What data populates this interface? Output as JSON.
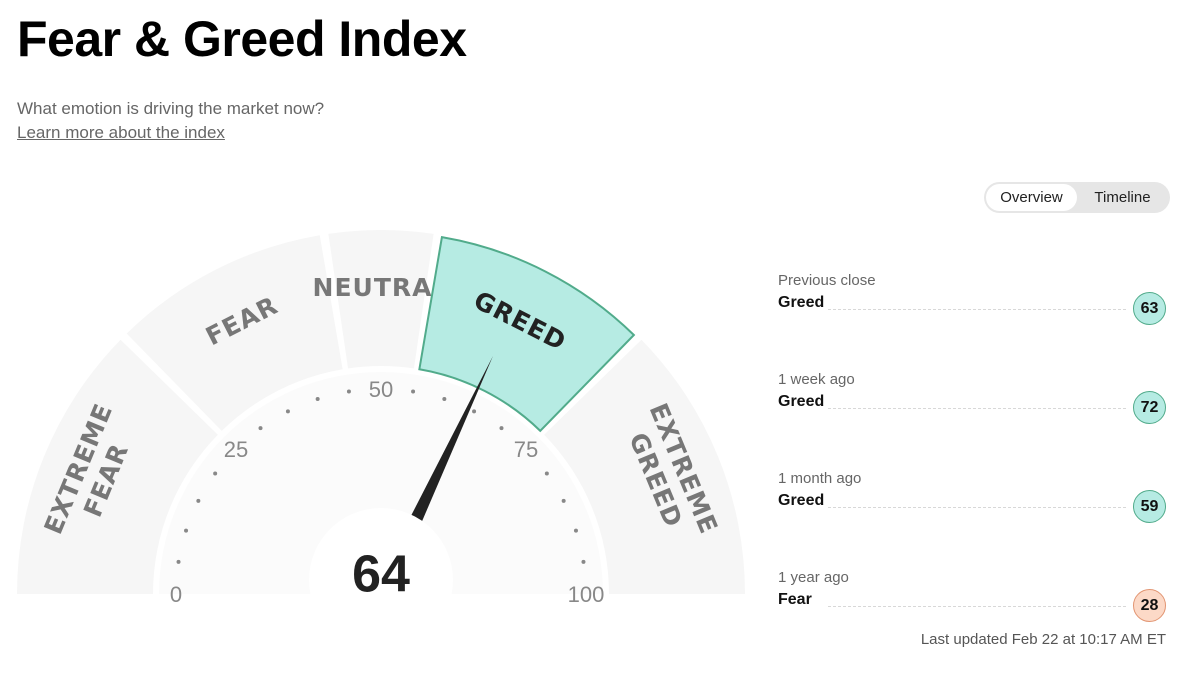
{
  "header": {
    "title": "Fear & Greed Index",
    "subtitle": "What emotion is driving the market now?",
    "learn_more": "Learn more about the index"
  },
  "toggle": {
    "overview_label": "Overview",
    "timeline_label": "Timeline",
    "active": "Overview"
  },
  "gauge": {
    "value": 64,
    "value_text": "64",
    "active_segment": "greed",
    "segments": [
      {
        "id": "extreme-fear",
        "label": "EXTREME FEAR",
        "line1": "EXTREME",
        "line2": "FEAR",
        "from": 0,
        "to": 25
      },
      {
        "id": "fear",
        "label": "FEAR",
        "line1": "FEAR",
        "line2": "",
        "from": 25,
        "to": 45
      },
      {
        "id": "neutral",
        "label": "NEUTRAL",
        "line1": "NEUTRAL",
        "line2": "",
        "from": 45,
        "to": 55
      },
      {
        "id": "greed",
        "label": "GREED",
        "line1": "GREED",
        "line2": "",
        "from": 55,
        "to": 75
      },
      {
        "id": "extreme-greed",
        "label": "EXTREME GREED",
        "line1": "EXTREME",
        "line2": "GREED",
        "from": 75,
        "to": 100
      }
    ],
    "scale_labels": [
      "0",
      "25",
      "50",
      "75",
      "100"
    ],
    "colors": {
      "segment": "#f6f6f6",
      "active_fill": "#b6ebe3",
      "active_stroke": "#51ab8b",
      "needle": "#222222",
      "segment_text": "#777777"
    }
  },
  "history": [
    {
      "label": "Previous close",
      "rating": "Greed",
      "value": "63",
      "tone": "greed"
    },
    {
      "label": "1 week ago",
      "rating": "Greed",
      "value": "72",
      "tone": "greed"
    },
    {
      "label": "1 month ago",
      "rating": "Greed",
      "value": "59",
      "tone": "greed"
    },
    {
      "label": "1 year ago",
      "rating": "Fear",
      "value": "28",
      "tone": "fear"
    }
  ],
  "last_updated": "Last updated Feb 22 at 10:17 AM ET"
}
